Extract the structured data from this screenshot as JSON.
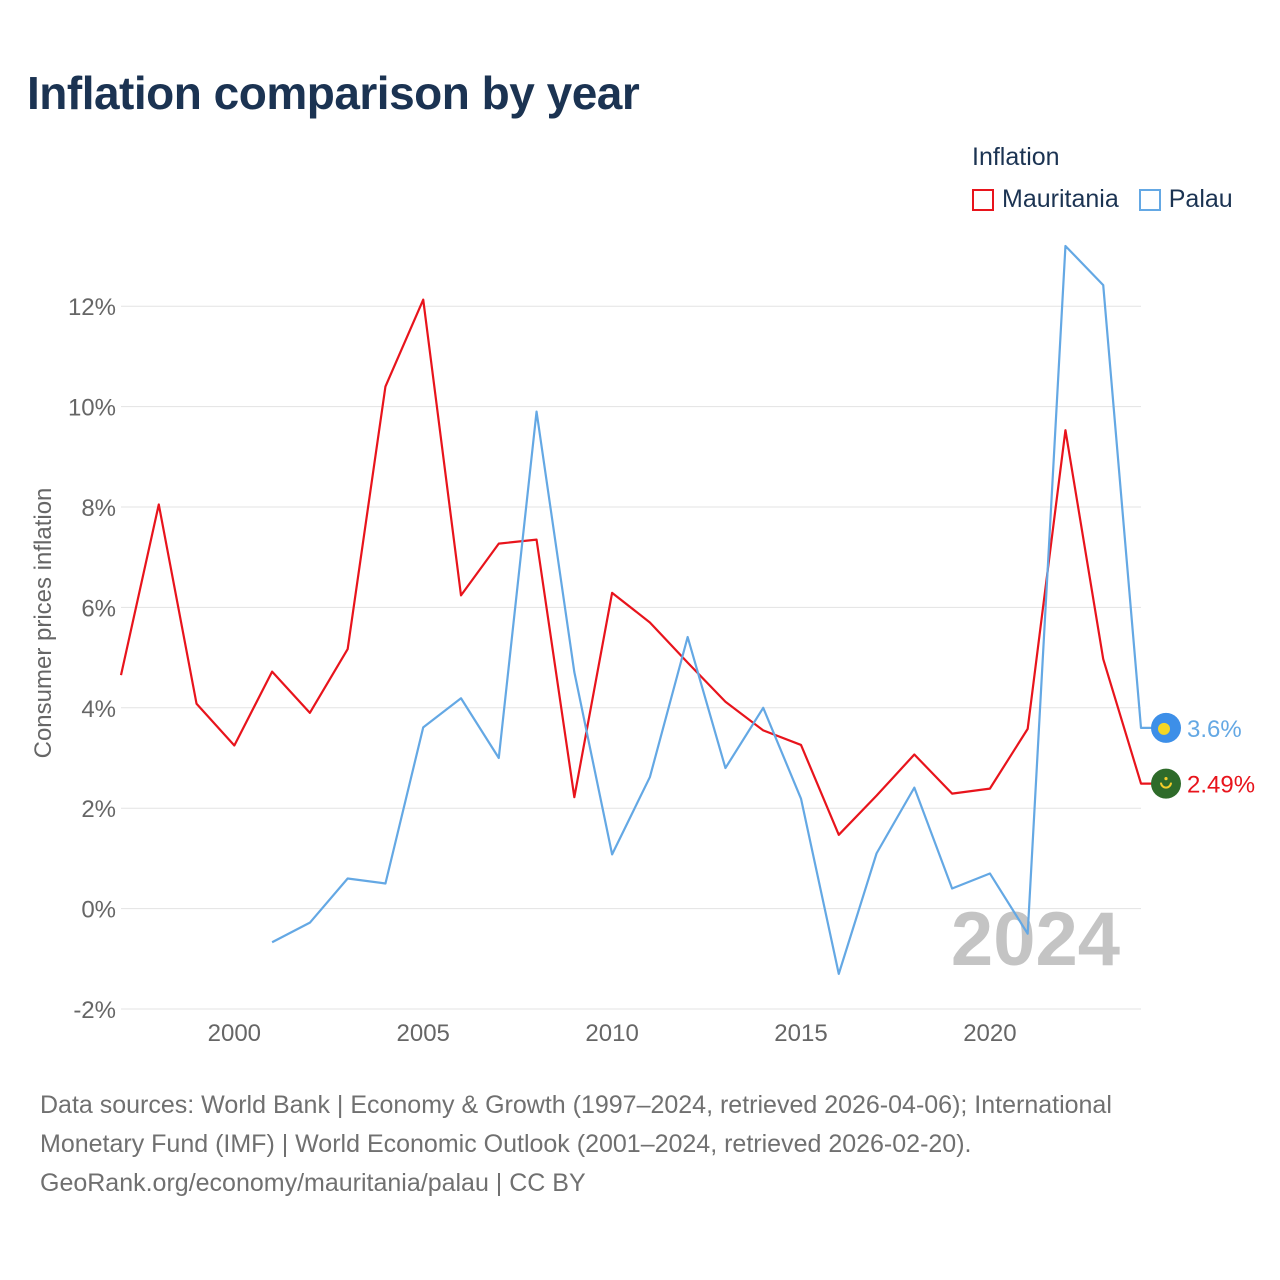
{
  "title": "Inflation comparison by year",
  "legend": {
    "title": "Inflation",
    "items": [
      {
        "label": "Mauritania",
        "color": "#e8141c"
      },
      {
        "label": "Palau",
        "color": "#64a8e4"
      }
    ]
  },
  "chart_data": {
    "type": "line",
    "title": "Inflation comparison by year",
    "xlabel": "",
    "ylabel": "Consumer prices inflation",
    "xlim": [
      1997,
      2024
    ],
    "ylim": [
      -2,
      13
    ],
    "yticks": [
      -2,
      0,
      2,
      4,
      6,
      8,
      10,
      12
    ],
    "ytick_labels": [
      "-2%",
      "0%",
      "2%",
      "4%",
      "6%",
      "8%",
      "10%",
      "12%"
    ],
    "xticks": [
      2000,
      2005,
      2010,
      2015,
      2020
    ],
    "xtick_labels": [
      "2000",
      "2005",
      "2010",
      "2015",
      "2020"
    ],
    "grid": true,
    "watermark_year": "2024",
    "series": [
      {
        "name": "Mauritania",
        "color": "#e8141c",
        "end_label": "2.49%",
        "x": [
          1997,
          1998,
          1999,
          2000,
          2001,
          2002,
          2003,
          2004,
          2005,
          2006,
          2007,
          2008,
          2009,
          2010,
          2011,
          2012,
          2013,
          2014,
          2015,
          2016,
          2017,
          2018,
          2019,
          2020,
          2021,
          2022,
          2023,
          2024
        ],
        "values": [
          4.65,
          8.05,
          4.08,
          3.25,
          4.72,
          3.9,
          5.17,
          10.4,
          12.13,
          6.24,
          7.27,
          7.35,
          2.22,
          6.29,
          5.7,
          4.9,
          4.12,
          3.55,
          3.26,
          1.47,
          2.25,
          3.07,
          2.29,
          2.39,
          3.58,
          9.53,
          4.97,
          2.49
        ]
      },
      {
        "name": "Palau",
        "color": "#64a8e4",
        "end_label": "3.6%",
        "x": [
          2001,
          2002,
          2003,
          2004,
          2005,
          2006,
          2007,
          2008,
          2009,
          2010,
          2011,
          2012,
          2013,
          2014,
          2015,
          2016,
          2017,
          2018,
          2019,
          2020,
          2021,
          2022,
          2023,
          2024
        ],
        "values": [
          -0.67,
          -0.28,
          0.6,
          0.5,
          3.61,
          4.19,
          3.0,
          9.9,
          4.71,
          1.08,
          2.62,
          5.41,
          2.8,
          4.0,
          2.19,
          -1.3,
          1.1,
          2.41,
          0.4,
          0.7,
          -0.5,
          13.2,
          12.42,
          3.6
        ]
      }
    ]
  },
  "footer": {
    "line1": "Data sources: World Bank | Economy & Growth (1997–2024, retrieved 2026-04-06); International",
    "line2": "Monetary Fund (IMF) | World Economic Outlook (2001–2024, retrieved 2026-02-20).",
    "line3": "GeoRank.org/economy/mauritania/palau | CC BY"
  }
}
